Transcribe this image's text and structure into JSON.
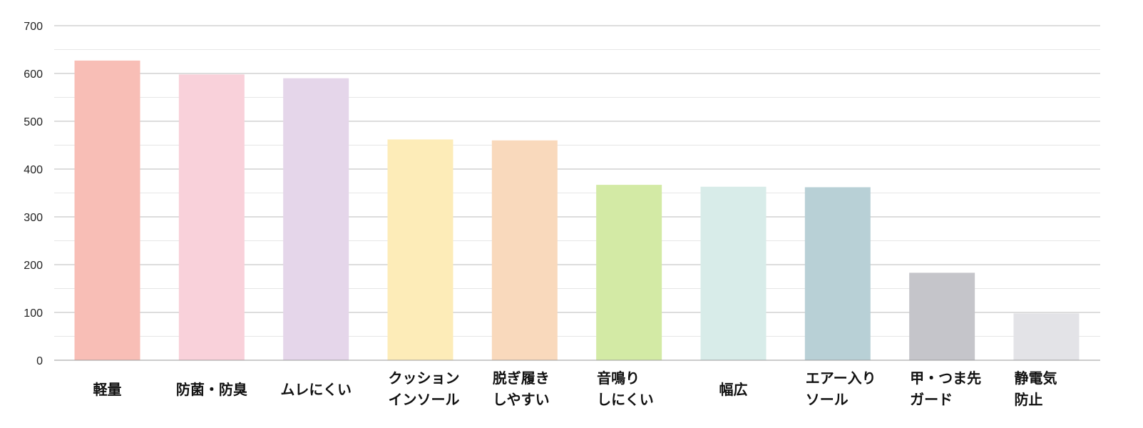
{
  "chart_data": {
    "type": "bar",
    "title": "",
    "xlabel": "",
    "ylabel": "",
    "ylim": [
      0,
      700
    ],
    "y_ticks": [
      0,
      100,
      200,
      300,
      400,
      500,
      600,
      700
    ],
    "grid": true,
    "categories": [
      [
        "軽量"
      ],
      [
        "防菌・防臭"
      ],
      [
        "ムレにくい"
      ],
      [
        "クッション",
        "インソール"
      ],
      [
        "脱ぎ履き",
        "しやすい"
      ],
      [
        "音鳴り",
        "しにくい"
      ],
      [
        "幅広"
      ],
      [
        "エアー入り",
        "ソール"
      ],
      [
        "甲・つま先",
        "ガード"
      ],
      [
        "静電気",
        "防止"
      ]
    ],
    "values": [
      627,
      598,
      590,
      462,
      460,
      367,
      363,
      362,
      183,
      98
    ],
    "colors": [
      "#F8BEB6",
      "#F9D1DA",
      "#E5D6EA",
      "#FDECB8",
      "#F9D9BC",
      "#D3EAA5",
      "#D8ECE9",
      "#B8D0D6",
      "#C5C5CA",
      "#E3E3E7"
    ],
    "grid_color_major": "#BBBBBB",
    "grid_color_minor": "#E6E6E6",
    "axis_color": "#999999"
  }
}
